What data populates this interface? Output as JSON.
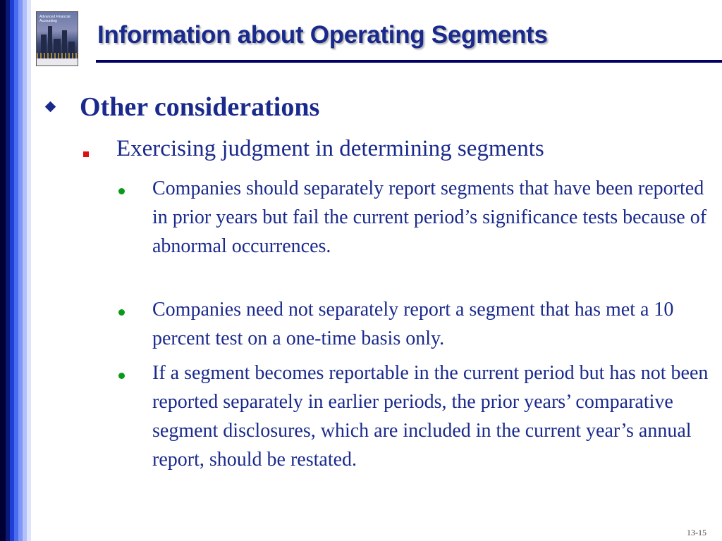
{
  "slide": {
    "title": "Information about Operating Segments",
    "page_number": "13-15"
  },
  "book_cover": {
    "title_text": "Advanced Financial Accounting"
  },
  "bullets": {
    "level1": "Other considerations",
    "level2": "Exercising judgment in determining segments",
    "level3": [
      "Companies should separately report segments that have been reported in prior years but fail the current period’s significance tests because of abnormal occurrences.",
      "Companies need not separately report a segment that has met a 10 percent test on a one-time basis only.",
      "If a segment becomes reportable in the current period but has not been reported separately in earlier periods, the prior years’ comparative segment disclosures, which are included in the current year’s annual report, should be restated."
    ]
  },
  "colors": {
    "title": "#1a2a8c",
    "text": "#1a2a8c",
    "level1_marker": "#1a2a8c",
    "level2_marker": "#e01010",
    "level3_marker": "#0a9a1a",
    "title_rule": "#000066"
  }
}
